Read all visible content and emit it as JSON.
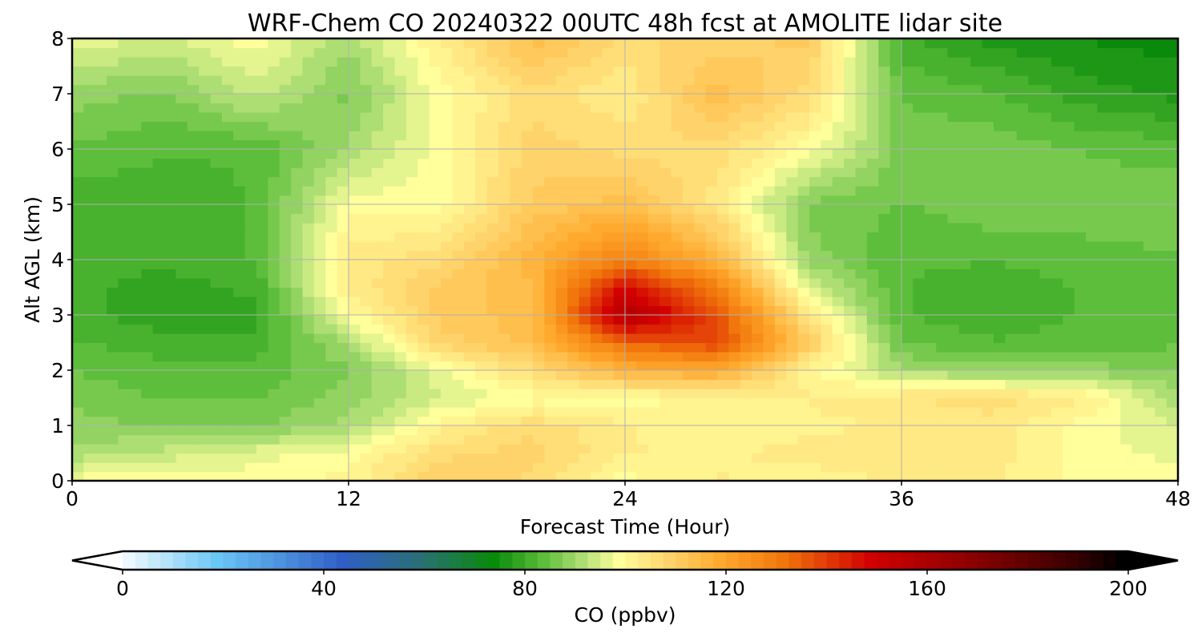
{
  "chart_data": {
    "type": "heatmap",
    "title": "WRF-Chem CO  20240322 00UTC 48h fcst at AMOLITE lidar site",
    "xlabel": "Forecast Time (Hour)",
    "ylabel": "Alt AGL (km)",
    "xlim": [
      0,
      48
    ],
    "ylim": [
      0,
      8
    ],
    "x_ticks": [
      "0",
      "12",
      "24",
      "36",
      "48"
    ],
    "y_ticks": [
      "0",
      "1",
      "2",
      "3",
      "4",
      "5",
      "6",
      "7",
      "8"
    ],
    "grid": true,
    "z_unit": "ppbv",
    "x": [
      0,
      4,
      8,
      12,
      16,
      20,
      24,
      28,
      32,
      36,
      40,
      44,
      48
    ],
    "y": [
      0,
      0.5,
      1,
      1.5,
      2,
      2.5,
      3,
      3.5,
      4,
      5,
      6,
      7,
      8
    ],
    "z": [
      [
        100,
        100,
        100,
        102,
        112,
        108,
        100,
        104,
        102,
        104,
        104,
        100,
        100
      ],
      [
        92,
        95,
        98,
        100,
        108,
        110,
        104,
        103,
        105,
        106,
        105,
        100,
        98
      ],
      [
        90,
        88,
        88,
        92,
        103,
        108,
        104,
        102,
        103,
        104,
        105,
        100,
        96
      ],
      [
        88,
        86,
        86,
        90,
        96,
        100,
        100,
        102,
        104,
        106,
        108,
        104,
        92
      ],
      [
        86,
        85,
        85,
        88,
        98,
        108,
        118,
        120,
        102,
        92,
        90,
        90,
        88
      ],
      [
        84,
        82,
        82,
        92,
        110,
        115,
        135,
        140,
        112,
        86,
        84,
        85,
        86
      ],
      [
        82,
        80,
        80,
        100,
        112,
        115,
        160,
        138,
        105,
        84,
        82,
        84,
        86
      ],
      [
        82,
        80,
        82,
        104,
        112,
        116,
        150,
        130,
        96,
        84,
        82,
        84,
        86
      ],
      [
        82,
        82,
        84,
        105,
        108,
        118,
        130,
        118,
        90,
        84,
        84,
        85,
        86
      ],
      [
        82,
        82,
        84,
        100,
        100,
        112,
        115,
        105,
        88,
        86,
        88,
        88,
        88
      ],
      [
        86,
        84,
        84,
        92,
        100,
        110,
        108,
        108,
        100,
        88,
        88,
        86,
        85
      ],
      [
        90,
        88,
        95,
        88,
        100,
        108,
        104,
        115,
        108,
        86,
        84,
        80,
        78
      ],
      [
        98,
        96,
        100,
        92,
        104,
        115,
        108,
        110,
        112,
        82,
        78,
        76,
        75
      ]
    ],
    "colorbar": {
      "label": "CO  (ppbv)",
      "ticks": [
        0,
        40,
        80,
        120,
        160,
        200
      ],
      "tick_labels": [
        "0",
        "40",
        "80",
        "120",
        "160",
        "200"
      ],
      "range": [
        0,
        200
      ],
      "extend": "both",
      "colors": [
        {
          "v": 0,
          "c": "#ffffff"
        },
        {
          "v": 20,
          "c": "#6ac6f5"
        },
        {
          "v": 45,
          "c": "#2f5fc6"
        },
        {
          "v": 60,
          "c": "#2a6f78"
        },
        {
          "v": 75,
          "c": "#0a8a0a"
        },
        {
          "v": 85,
          "c": "#5cbe3a"
        },
        {
          "v": 92,
          "c": "#a8dc70"
        },
        {
          "v": 100,
          "c": "#ffff9c"
        },
        {
          "v": 110,
          "c": "#ffd36b"
        },
        {
          "v": 120,
          "c": "#ffaa2e"
        },
        {
          "v": 132,
          "c": "#f27a0c"
        },
        {
          "v": 150,
          "c": "#d20000"
        },
        {
          "v": 170,
          "c": "#8c0000"
        },
        {
          "v": 190,
          "c": "#3a0000"
        },
        {
          "v": 200,
          "c": "#000000"
        }
      ]
    }
  }
}
